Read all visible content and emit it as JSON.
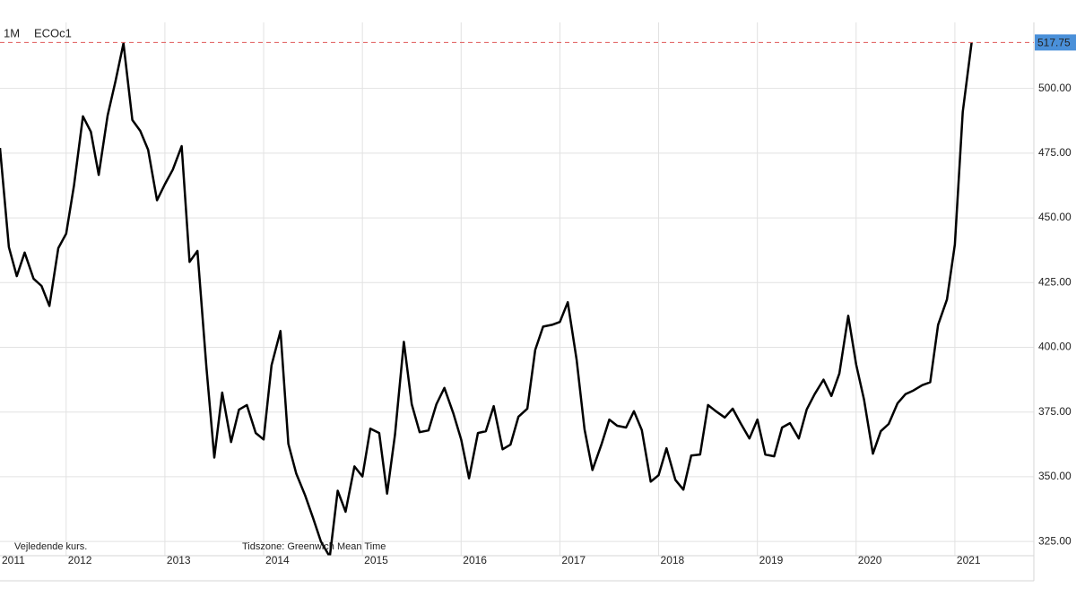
{
  "chart_data": {
    "type": "line",
    "interval": "1M",
    "title": "ECOc1",
    "footnote": "Vejledende kurs.",
    "timezone": "Tidszone: Greenwich Mean Time",
    "color": "#000000",
    "last_value_color": "#4a90d9",
    "grid": true,
    "x": [
      2011.33,
      2011.42,
      2011.5,
      2011.58,
      2011.67,
      2011.75,
      2011.83,
      2011.92,
      2012,
      2012.08,
      2012.17,
      2012.25,
      2012.33,
      2012.42,
      2012.5,
      2012.58,
      2012.67,
      2012.75,
      2012.83,
      2012.92,
      2013,
      2013.08,
      2013.17,
      2013.25,
      2013.33,
      2013.42,
      2013.5,
      2013.58,
      2013.67,
      2013.75,
      2013.83,
      2013.92,
      2014,
      2014.08,
      2014.17,
      2014.25,
      2014.33,
      2014.42,
      2014.5,
      2014.58,
      2014.67,
      2014.75,
      2014.83,
      2014.92,
      2015,
      2015.08,
      2015.17,
      2015.25,
      2015.33,
      2015.42,
      2015.5,
      2015.58,
      2015.67,
      2015.75,
      2015.83,
      2015.92,
      2016,
      2016.08,
      2016.17,
      2016.25,
      2016.33,
      2016.42,
      2016.5,
      2016.58,
      2016.67,
      2016.75,
      2016.83,
      2016.92,
      2017,
      2017.08,
      2017.17,
      2017.25,
      2017.33,
      2017.42,
      2017.5,
      2017.58,
      2017.67,
      2017.75,
      2017.83,
      2017.92,
      2018,
      2018.08,
      2018.17,
      2018.25,
      2018.33,
      2018.42,
      2018.5,
      2018.58,
      2018.67,
      2018.75,
      2018.83,
      2018.92,
      2019,
      2019.08,
      2019.17,
      2019.25,
      2019.33,
      2019.42,
      2019.5,
      2019.58,
      2019.67,
      2019.75,
      2019.83,
      2019.92,
      2020,
      2020.08,
      2020.17,
      2020.25,
      2020.33,
      2020.42,
      2020.5,
      2020.58,
      2020.67,
      2020.75,
      2020.83,
      2020.92,
      2021,
      2021.08,
      2021.17
    ],
    "values": [
      477,
      438.7,
      427.5,
      436.6,
      426.5,
      423.7,
      416,
      438.3,
      443.9,
      462.7,
      489.2,
      483.3,
      466.6,
      489.5,
      502.8,
      517.4,
      487.8,
      483.6,
      476.3,
      456.8,
      463,
      468.6,
      477.7,
      433,
      437.2,
      392.3,
      357.4,
      382.5,
      363.4,
      375.9,
      377.7,
      366.9,
      364.4,
      393,
      406.3,
      362.7,
      351.2,
      342.8,
      334.1,
      325,
      319.1,
      344.6,
      336.5,
      354,
      350.1,
      368.6,
      366.9,
      343.5,
      366.2,
      402.1,
      378,
      367.2,
      367.9,
      378,
      384.3,
      374.6,
      364.4,
      349.4,
      366.9,
      367.6,
      377.3,
      360.6,
      362.4,
      373.2,
      376.3,
      399,
      408,
      408.7,
      409.8,
      417.4,
      395.1,
      368.3,
      352.6,
      362.4,
      372.1,
      369.7,
      369,
      375.3,
      368,
      348.1,
      350.6,
      361,
      348.8,
      345,
      358.2,
      358.6,
      377.7,
      375.3,
      372.9,
      376.3,
      370.7,
      364.8,
      372.1,
      358.6,
      357.9,
      369,
      370.7,
      364.8,
      376,
      381.9,
      387.5,
      381.2,
      389.9,
      412.2,
      393.4,
      379.8,
      358.9,
      367.6,
      370.4,
      378.4,
      381.9,
      383.3,
      385.4,
      386.5,
      408.7,
      418.5,
      439.7,
      490.9,
      517.75
    ],
    "xlim": [
      2011.33,
      2021.8
    ],
    "xticks": [
      2011,
      2012,
      2013,
      2014,
      2015,
      2016,
      2017,
      2018,
      2019,
      2020,
      2021
    ],
    "ylim": [
      319.5,
      525.5
    ],
    "yticks": [
      {
        "value": 325,
        "label": "325.00"
      },
      {
        "value": 350,
        "label": "350.00"
      },
      {
        "value": 375,
        "label": "375.00"
      },
      {
        "value": 400,
        "label": "400.00"
      },
      {
        "value": 425,
        "label": "425.00"
      },
      {
        "value": 450,
        "label": "450.00"
      },
      {
        "value": 475,
        "label": "475.00"
      },
      {
        "value": 500,
        "label": "500.00"
      }
    ]
  }
}
